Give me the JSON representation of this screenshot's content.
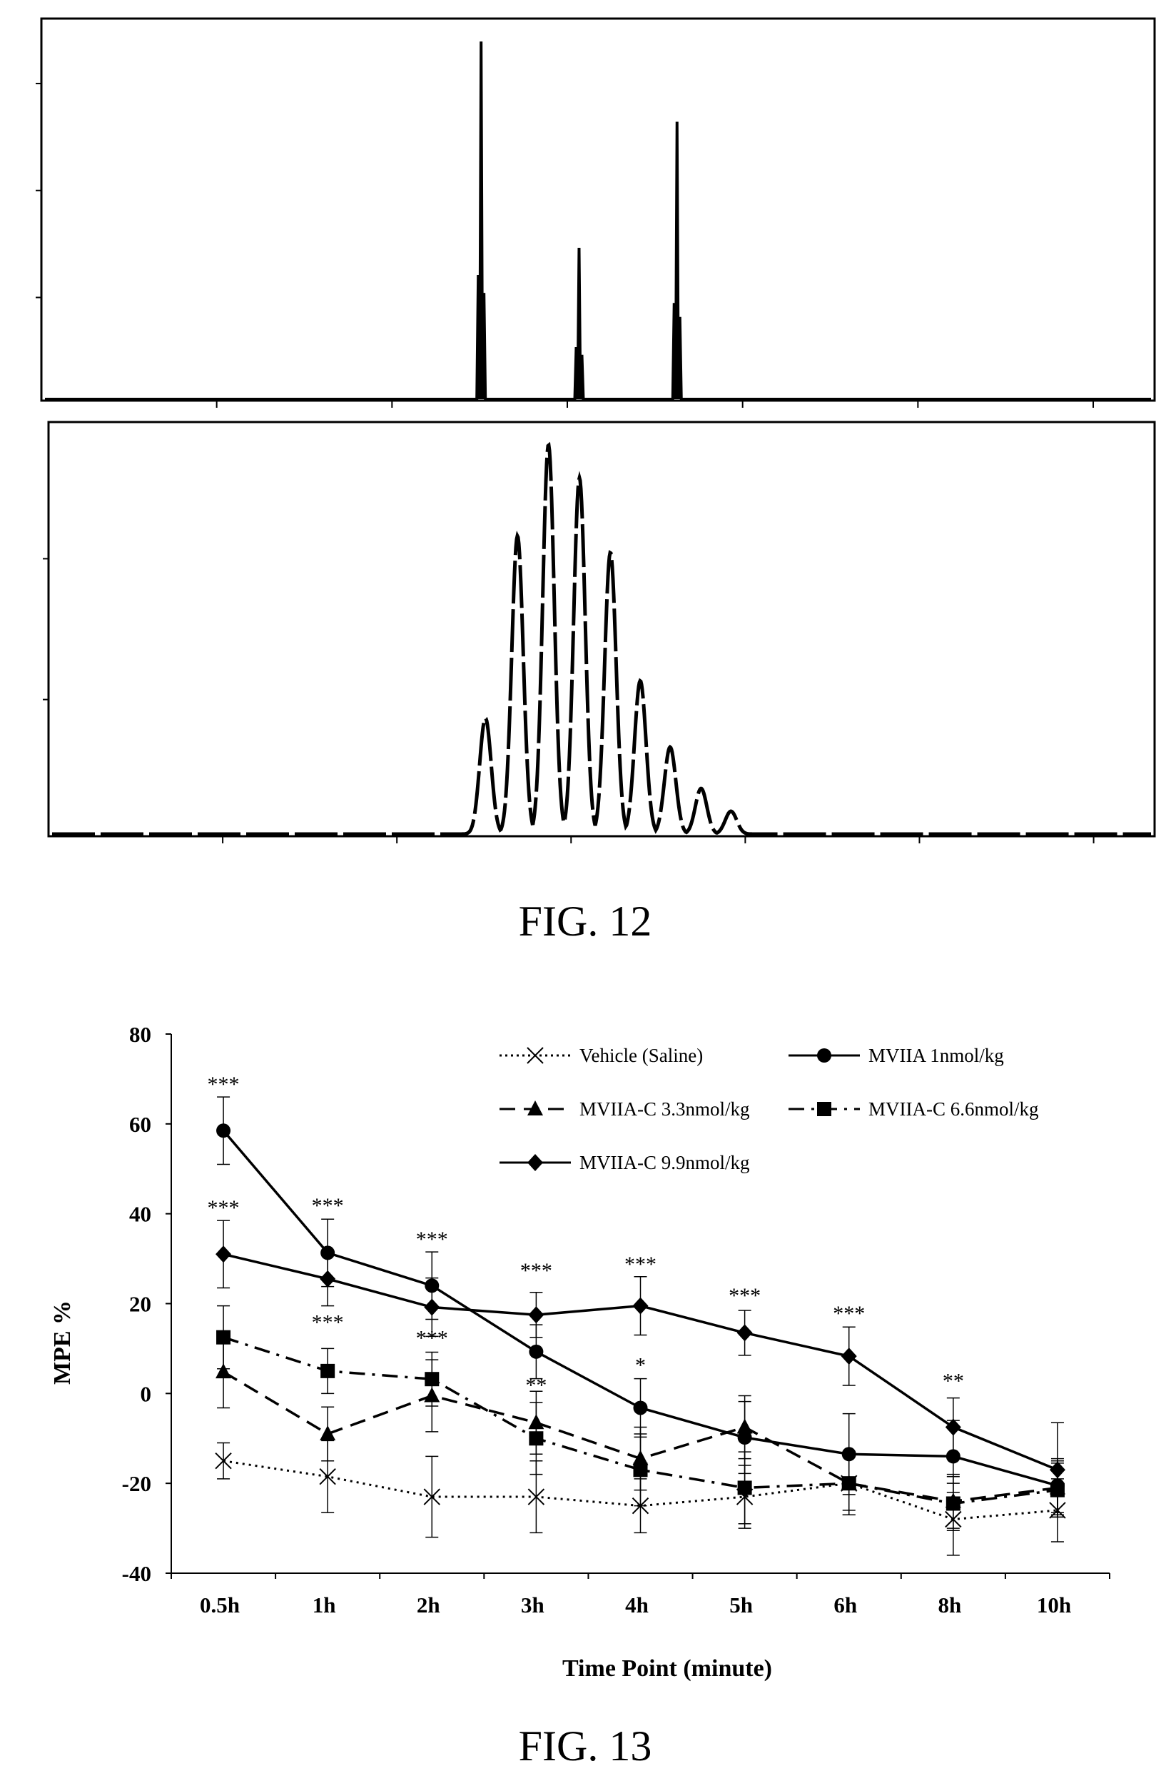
{
  "figures": {
    "fig12_caption": "FIG. 12",
    "fig13_caption": "FIG. 13"
  },
  "chart_data": [
    {
      "type": "line",
      "panel": "FIG. 12 top",
      "peaks": [
        {
          "x": 0.395,
          "height": 0.94
        },
        {
          "x": 0.483,
          "height": 0.4
        },
        {
          "x": 0.571,
          "height": 0.73
        }
      ]
    },
    {
      "type": "line",
      "panel": "FIG. 12 bottom",
      "peaks": [
        {
          "x": 0.395,
          "height": 0.28
        },
        {
          "x": 0.424,
          "height": 0.72
        },
        {
          "x": 0.452,
          "height": 0.94
        },
        {
          "x": 0.48,
          "height": 0.86
        },
        {
          "x": 0.508,
          "height": 0.68
        },
        {
          "x": 0.535,
          "height": 0.37
        },
        {
          "x": 0.562,
          "height": 0.21
        },
        {
          "x": 0.59,
          "height": 0.11
        },
        {
          "x": 0.617,
          "height": 0.055
        }
      ]
    },
    {
      "type": "line",
      "panel": "FIG. 13",
      "xlabel": "Time Point (minute)",
      "ylabel": "MPE %",
      "categories": [
        "0.5h",
        "1h",
        "2h",
        "3h",
        "4h",
        "5h",
        "6h",
        "8h",
        "10h"
      ],
      "ylim": [
        -40,
        80
      ],
      "yticks": [
        "80",
        "60",
        "40",
        "20",
        "0",
        "-20",
        "-40"
      ],
      "legend_position": "top-right",
      "series": [
        {
          "name": "Vehicle (Saline)",
          "marker": "x",
          "dash": "dotted",
          "color": "#000000",
          "values": [
            -15,
            -18.5,
            -23,
            -23,
            -25,
            -23,
            -20,
            -28,
            -26
          ],
          "errors": [
            4,
            8,
            9,
            8,
            6,
            7,
            6,
            8,
            7
          ]
        },
        {
          "name": "MVIIA 1nmol/kg",
          "marker": "circle",
          "dash": "solid",
          "color": "#000000",
          "values": [
            58.5,
            31.3,
            24,
            9.3,
            -3.2,
            -9.8,
            -13.5,
            -14,
            -20.5
          ],
          "errors": [
            7.5,
            7.5,
            7.5,
            6,
            6.5,
            8,
            9,
            8,
            6
          ]
        },
        {
          "name": "MVIIA-C 3.3nmol/kg",
          "marker": "triangle",
          "dash": "dashed",
          "color": "#000000",
          "values": [
            4.8,
            -9,
            -0.5,
            -6.5,
            -14.5,
            -7.5,
            -20,
            -24,
            -21
          ],
          "errors": [
            8,
            6,
            8,
            7,
            7,
            7,
            7,
            6,
            6
          ]
        },
        {
          "name": "MVIIA-C 6.6nmol/kg",
          "marker": "square",
          "dash": "dashdot",
          "color": "#000000",
          "values": [
            12.5,
            5,
            3.2,
            -10,
            -17,
            -21,
            -20,
            -24.5,
            -21.5
          ],
          "errors": [
            7,
            5,
            6,
            8,
            8,
            8,
            7,
            6,
            6
          ]
        },
        {
          "name": "MVIIA-C 9.9nmol/kg",
          "marker": "diamond",
          "dash": "solid",
          "color": "#000000",
          "values": [
            31,
            25.5,
            19.2,
            17.5,
            19.5,
            13.5,
            8.3,
            -7.5,
            -17
          ],
          "errors": [
            7.5,
            6,
            6.5,
            5,
            6.5,
            5,
            6.5,
            6.5,
            10.5
          ]
        }
      ],
      "annotations": [
        {
          "category": "0.5h",
          "value": 66,
          "text": "***"
        },
        {
          "category": "0.5h",
          "value": 38.5,
          "text": "***"
        },
        {
          "category": "1h",
          "value": 39,
          "text": "***"
        },
        {
          "category": "1h",
          "value": 13,
          "text": "***"
        },
        {
          "category": "2h",
          "value": 31.5,
          "text": "***"
        },
        {
          "category": "2h",
          "value": 9.5,
          "text": "***"
        },
        {
          "category": "3h",
          "value": 24.5,
          "text": "***"
        },
        {
          "category": "3h",
          "value": -1,
          "text": "**"
        },
        {
          "category": "4h",
          "value": 26,
          "text": "***"
        },
        {
          "category": "4h",
          "value": 3.5,
          "text": "*"
        },
        {
          "category": "5h",
          "value": 19,
          "text": "***"
        },
        {
          "category": "6h",
          "value": 15,
          "text": "***"
        },
        {
          "category": "8h",
          "value": 0,
          "text": "**"
        }
      ]
    }
  ]
}
